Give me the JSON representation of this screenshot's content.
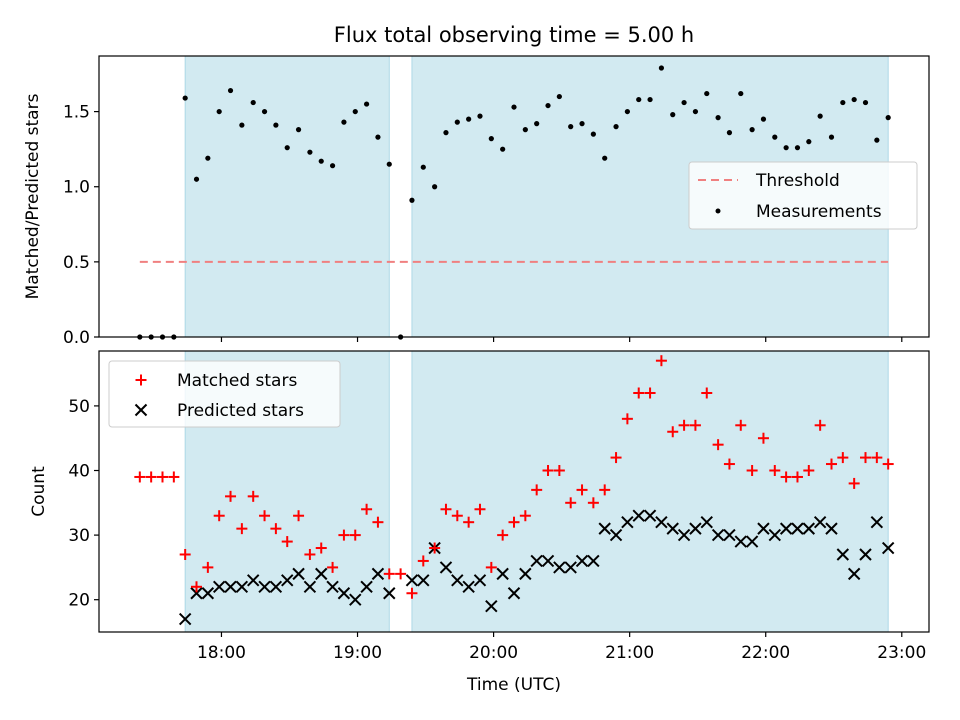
{
  "title": "Flux total observing time = 5.00 h",
  "colors": {
    "band": "#add8e6",
    "threshold": "#f08080",
    "matched": "#ff0000",
    "predicted": "#000000",
    "measurements": "#000000"
  },
  "chart_data": [
    {
      "type": "scatter",
      "panel": "top",
      "ylabel": "Matched/Predicted stars",
      "ylim": [
        0,
        1.87
      ],
      "yticks": [
        0.0,
        0.5,
        1.0,
        1.5
      ],
      "ytick_labels": [
        "0.0",
        "0.5",
        "1.0",
        "1.5"
      ],
      "grid": false,
      "legend_position": "center-right",
      "legend": [
        "Threshold",
        "Measurements"
      ],
      "observing_windows_utc": [
        [
          "17:44",
          "19:14"
        ],
        [
          "19:24",
          "22:54"
        ]
      ],
      "threshold": {
        "name": "Threshold",
        "value": 0.5,
        "x_start": "17:24",
        "x_end": "22:54",
        "style": "dashed"
      },
      "series": [
        {
          "name": "Measurements",
          "x": [
            "17:24",
            "17:29",
            "17:34",
            "17:39",
            "17:44",
            "17:49",
            "17:54",
            "17:59",
            "18:04",
            "18:09",
            "18:14",
            "18:19",
            "18:24",
            "18:29",
            "18:34",
            "18:39",
            "18:44",
            "18:49",
            "18:54",
            "18:59",
            "19:04",
            "19:09",
            "19:14",
            "19:19",
            "19:24",
            "19:29",
            "19:34",
            "19:39",
            "19:44",
            "19:49",
            "19:54",
            "19:59",
            "20:04",
            "20:09",
            "20:14",
            "20:19",
            "20:24",
            "20:29",
            "20:34",
            "20:39",
            "20:44",
            "20:49",
            "20:54",
            "20:59",
            "21:04",
            "21:09",
            "21:14",
            "21:19",
            "21:24",
            "21:29",
            "21:34",
            "21:39",
            "21:44",
            "21:49",
            "21:54",
            "21:59",
            "22:04",
            "22:09",
            "22:14",
            "22:19",
            "22:24",
            "22:29",
            "22:34",
            "22:39",
            "22:44",
            "22:49",
            "22:54"
          ],
          "y": [
            0.0,
            0.0,
            0.0,
            0.0,
            1.59,
            1.05,
            1.19,
            1.5,
            1.64,
            1.41,
            1.56,
            1.5,
            1.41,
            1.26,
            1.38,
            1.23,
            1.17,
            1.14,
            1.43,
            1.5,
            1.55,
            1.33,
            1.15,
            0.0,
            0.91,
            1.13,
            1.0,
            1.36,
            1.43,
            1.45,
            1.47,
            1.32,
            1.25,
            1.53,
            1.38,
            1.42,
            1.54,
            1.6,
            1.4,
            1.42,
            1.35,
            1.19,
            1.4,
            1.5,
            1.58,
            1.58,
            1.79,
            1.48,
            1.56,
            1.5,
            1.62,
            1.46,
            1.36,
            1.62,
            1.38,
            1.45,
            1.33,
            1.26,
            1.26,
            1.3,
            1.47,
            1.33,
            1.56,
            1.58,
            1.56,
            1.31,
            1.46
          ]
        }
      ]
    },
    {
      "type": "scatter",
      "panel": "bottom",
      "xlabel": "Time (UTC)",
      "ylabel": "Count",
      "ylim": [
        15,
        58.5
      ],
      "yticks": [
        20,
        30,
        40,
        50
      ],
      "ytick_labels": [
        "20",
        "30",
        "40",
        "50"
      ],
      "xlim": [
        "17:06",
        "23:12"
      ],
      "xticks": [
        "18:00",
        "19:00",
        "20:00",
        "21:00",
        "22:00",
        "23:00"
      ],
      "xtick_labels": [
        "18:00",
        "19:00",
        "20:00",
        "21:00",
        "22:00",
        "23:00"
      ],
      "grid": false,
      "legend_position": "top-left",
      "legend": [
        "Matched stars",
        "Predicted stars"
      ],
      "series": [
        {
          "name": "Matched stars",
          "marker": "+",
          "x": [
            "17:24",
            "17:29",
            "17:34",
            "17:39",
            "17:44",
            "17:49",
            "17:54",
            "17:59",
            "18:04",
            "18:09",
            "18:14",
            "18:19",
            "18:24",
            "18:29",
            "18:34",
            "18:39",
            "18:44",
            "18:49",
            "18:54",
            "18:59",
            "19:04",
            "19:09",
            "19:14",
            "19:19",
            "19:24",
            "19:29",
            "19:34",
            "19:39",
            "19:44",
            "19:49",
            "19:54",
            "19:59",
            "20:04",
            "20:09",
            "20:14",
            "20:19",
            "20:24",
            "20:29",
            "20:34",
            "20:39",
            "20:44",
            "20:49",
            "20:54",
            "20:59",
            "21:04",
            "21:09",
            "21:14",
            "21:19",
            "21:24",
            "21:29",
            "21:34",
            "21:39",
            "21:44",
            "21:49",
            "21:54",
            "21:59",
            "22:04",
            "22:09",
            "22:14",
            "22:19",
            "22:24",
            "22:29",
            "22:34",
            "22:39",
            "22:44",
            "22:49",
            "22:54"
          ],
          "y": [
            39,
            39,
            39,
            39,
            27,
            22,
            25,
            33,
            36,
            31,
            36,
            33,
            31,
            29,
            33,
            27,
            28,
            25,
            30,
            30,
            34,
            32,
            24,
            24,
            21,
            26,
            28,
            34,
            33,
            32,
            34,
            25,
            30,
            32,
            33,
            37,
            40,
            40,
            35,
            37,
            35,
            37,
            42,
            48,
            52,
            52,
            57,
            46,
            47,
            47,
            52,
            44,
            41,
            47,
            40,
            45,
            40,
            39,
            39,
            40,
            47,
            41,
            42,
            38,
            42,
            42,
            41
          ]
        },
        {
          "name": "Predicted stars",
          "marker": "x",
          "x": [
            "17:44",
            "17:49",
            "17:54",
            "17:59",
            "18:04",
            "18:09",
            "18:14",
            "18:19",
            "18:24",
            "18:29",
            "18:34",
            "18:39",
            "18:44",
            "18:49",
            "18:54",
            "18:59",
            "19:04",
            "19:09",
            "19:14",
            "19:24",
            "19:29",
            "19:34",
            "19:39",
            "19:44",
            "19:49",
            "19:54",
            "19:59",
            "20:04",
            "20:09",
            "20:14",
            "20:19",
            "20:24",
            "20:29",
            "20:34",
            "20:39",
            "20:44",
            "20:49",
            "20:54",
            "20:59",
            "21:04",
            "21:09",
            "21:14",
            "21:19",
            "21:24",
            "21:29",
            "21:34",
            "21:39",
            "21:44",
            "21:49",
            "21:54",
            "21:59",
            "22:04",
            "22:09",
            "22:14",
            "22:19",
            "22:24",
            "22:29",
            "22:34",
            "22:39",
            "22:44",
            "22:49",
            "22:54"
          ],
          "y": [
            17,
            21,
            21,
            22,
            22,
            22,
            23,
            22,
            22,
            23,
            24,
            22,
            24,
            22,
            21,
            20,
            22,
            24,
            21,
            23,
            23,
            28,
            25,
            23,
            22,
            23,
            19,
            24,
            21,
            24,
            26,
            26,
            25,
            25,
            26,
            26,
            31,
            30,
            32,
            33,
            33,
            32,
            31,
            30,
            31,
            32,
            30,
            30,
            29,
            29,
            31,
            30,
            31,
            31,
            31,
            32,
            31,
            27,
            24,
            27,
            32,
            28
          ]
        }
      ]
    }
  ]
}
